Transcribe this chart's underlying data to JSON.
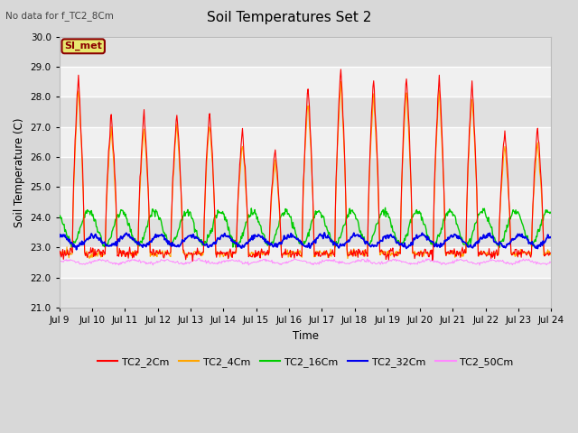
{
  "title": "Soil Temperatures Set 2",
  "subtitle": "No data for f_TC2_8Cm",
  "xlabel": "Time",
  "ylabel": "Soil Temperature (C)",
  "ylim": [
    21.0,
    30.0
  ],
  "yticks": [
    21.0,
    22.0,
    23.0,
    24.0,
    25.0,
    26.0,
    27.0,
    28.0,
    29.0,
    30.0
  ],
  "day_start": 9,
  "day_end": 24,
  "xtick_labels": [
    "Jul 9",
    "Jul 10",
    "Jul 11",
    "Jul 12",
    "Jul 13",
    "Jul 14",
    "Jul 15",
    "Jul 16",
    "Jul 17",
    "Jul 18",
    "Jul 19",
    "Jul 20",
    "Jul 21",
    "Jul 22",
    "Jul 23",
    "Jul 24"
  ],
  "fig_bg_color": "#d8d8d8",
  "plot_bg_color": "#f0f0f0",
  "stripe_light": "#f0f0f0",
  "stripe_dark": "#e0e0e0",
  "annotation": {
    "text": "SI_met",
    "bg": "#e8e870",
    "edge": "#8B0000",
    "fontsize": 8,
    "fontweight": "bold",
    "color": "#8B0000"
  },
  "series": {
    "TC2_2Cm": {
      "color": "#ff0000",
      "lw": 0.8
    },
    "TC2_4Cm": {
      "color": "#ffa500",
      "lw": 0.8
    },
    "TC2_16Cm": {
      "color": "#00cc00",
      "lw": 1.0
    },
    "TC2_32Cm": {
      "color": "#0000ee",
      "lw": 1.3
    },
    "TC2_50Cm": {
      "color": "#ff88ff",
      "lw": 0.7
    }
  },
  "n_points_per_day": 48,
  "seed": 123
}
